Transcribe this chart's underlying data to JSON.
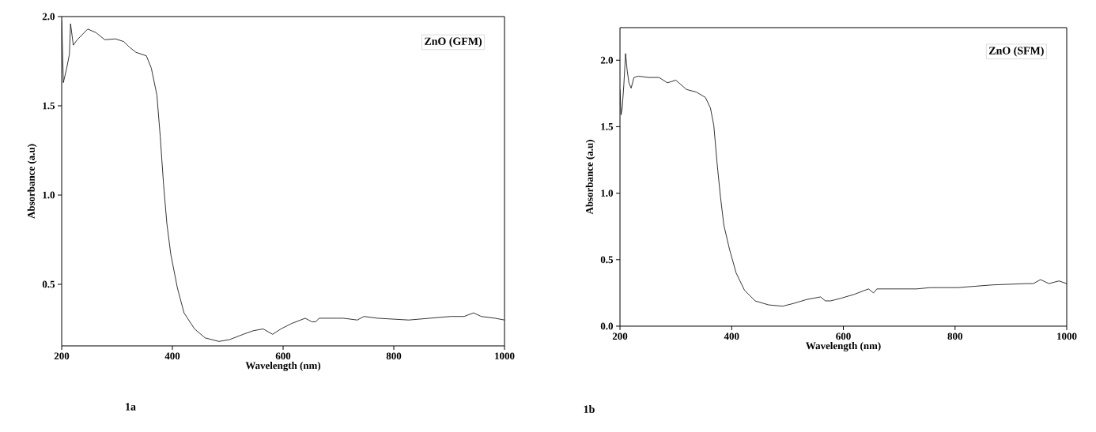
{
  "chart_data": [
    {
      "type": "line",
      "title": "ZnO (GFM)",
      "xlabel": "Wavelength (nm)",
      "ylabel": "Absorbance (a.u)",
      "annotations": [
        "1a"
      ],
      "xlim": [
        200,
        1000
      ],
      "ylim": [
        0.155,
        2.0
      ],
      "xticks": [
        200,
        400,
        600,
        800,
        1000
      ],
      "yticks": [
        {
          "value": 0.5,
          "label": "0.5"
        },
        {
          "value": 1,
          "label": "1.0"
        },
        {
          "value": 1.5,
          "label": "1.5"
        },
        {
          "value": 2,
          "label": "2.0"
        }
      ],
      "series": [
        {
          "color": "#000000",
          "x": [
            200,
            203,
            209,
            214,
            216,
            221,
            228,
            247,
            262,
            278,
            297,
            312,
            322,
            334,
            353,
            362,
            372,
            378,
            384,
            390,
            397,
            409,
            421,
            440,
            459,
            484,
            503,
            528,
            546,
            564,
            581,
            596,
            615,
            640,
            652,
            659,
            665,
            709,
            734,
            746,
            771,
            827,
            865,
            902,
            927,
            944,
            958,
            983,
            1000
          ],
          "values": [
            1.98,
            1.63,
            1.71,
            1.79,
            1.96,
            1.84,
            1.87,
            1.93,
            1.91,
            1.87,
            1.875,
            1.86,
            1.83,
            1.8,
            1.78,
            1.71,
            1.56,
            1.33,
            1.06,
            0.84,
            0.67,
            0.48,
            0.34,
            0.25,
            0.2,
            0.18,
            0.19,
            0.22,
            0.24,
            0.25,
            0.22,
            0.25,
            0.28,
            0.31,
            0.29,
            0.29,
            0.31,
            0.31,
            0.3,
            0.32,
            0.31,
            0.3,
            0.31,
            0.32,
            0.32,
            0.34,
            0.32,
            0.31,
            0.3
          ]
        }
      ]
    },
    {
      "type": "line",
      "title": "ZnO (SFM)",
      "xlabel": "Wavelength (nm)",
      "ylabel": "Absorbance (a.u)",
      "annotations": [
        "1b"
      ],
      "xlim": [
        200,
        1000
      ],
      "ylim": [
        0,
        2.245
      ],
      "xticks": [
        200,
        400,
        600,
        800,
        1000
      ],
      "yticks": [
        {
          "value": 0,
          "label": "0.0"
        },
        {
          "value": 0.5,
          "label": "0.5"
        },
        {
          "value": 1,
          "label": "1.0"
        },
        {
          "value": 1.5,
          "label": "1.5"
        },
        {
          "value": 2,
          "label": "2.0"
        }
      ],
      "series": [
        {
          "color": "#000000",
          "x": [
            200,
            202,
            204,
            207,
            210,
            213,
            216,
            220,
            225,
            233,
            251,
            270,
            285,
            300,
            319,
            337,
            353,
            362,
            368,
            374,
            380,
            386,
            396,
            408,
            423,
            442,
            466,
            491,
            510,
            534,
            559,
            568,
            577,
            596,
            620,
            645,
            654,
            660,
            682,
            731,
            756,
            805,
            866,
            928,
            940,
            953,
            968,
            986,
            1000
          ],
          "values": [
            1.78,
            1.59,
            1.64,
            1.82,
            2.05,
            1.92,
            1.83,
            1.79,
            1.87,
            1.88,
            1.87,
            1.87,
            1.83,
            1.85,
            1.78,
            1.76,
            1.72,
            1.64,
            1.51,
            1.22,
            0.97,
            0.76,
            0.58,
            0.4,
            0.27,
            0.19,
            0.16,
            0.15,
            0.17,
            0.2,
            0.22,
            0.19,
            0.19,
            0.21,
            0.24,
            0.28,
            0.25,
            0.28,
            0.28,
            0.28,
            0.29,
            0.29,
            0.31,
            0.32,
            0.32,
            0.35,
            0.32,
            0.34,
            0.32
          ]
        }
      ]
    }
  ]
}
